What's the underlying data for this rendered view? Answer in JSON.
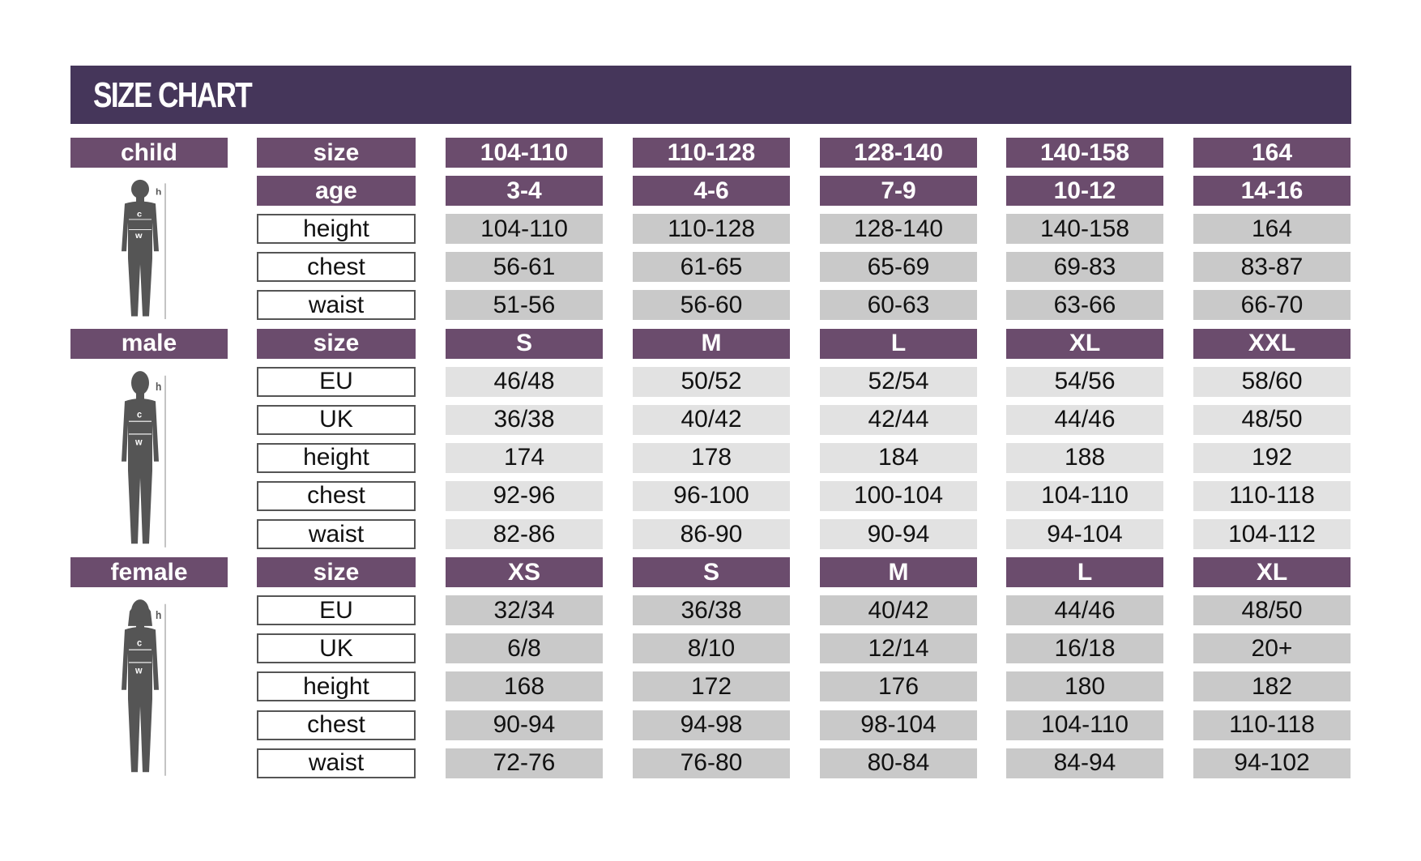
{
  "title": "SIZE CHART",
  "colors": {
    "header": "#45365a",
    "purple": "#6b4c6d",
    "gray": "#c9c9c9",
    "light_gray": "#e2e2e2"
  },
  "sections": [
    {
      "name": "child",
      "figure": "child-figure-icon",
      "figure_labels": [
        "h",
        "c",
        "w"
      ],
      "rows": [
        {
          "label": "size",
          "header": true,
          "values": [
            "104-110",
            "110-128",
            "128-140",
            "140-158",
            "164"
          ]
        },
        {
          "label": "age",
          "header": true,
          "values": [
            "3-4",
            "4-6",
            "7-9",
            "10-12",
            "14-16"
          ]
        },
        {
          "label": "height",
          "values": [
            "104-110",
            "110-128",
            "128-140",
            "140-158",
            "164"
          ]
        },
        {
          "label": "chest",
          "values": [
            "56-61",
            "61-65",
            "65-69",
            "69-83",
            "83-87"
          ]
        },
        {
          "label": "waist",
          "values": [
            "51-56",
            "56-60",
            "60-63",
            "63-66",
            "66-70"
          ]
        }
      ]
    },
    {
      "name": "male",
      "figure": "male-figure-icon",
      "figure_labels": [
        "h",
        "c",
        "w"
      ],
      "rows": [
        {
          "label": "size",
          "header": true,
          "values": [
            "S",
            "M",
            "L",
            "XL",
            "XXL"
          ]
        },
        {
          "label": "EU",
          "values": [
            "46/48",
            "50/52",
            "52/54",
            "54/56",
            "58/60"
          ]
        },
        {
          "label": "UK",
          "values": [
            "36/38",
            "40/42",
            "42/44",
            "44/46",
            "48/50"
          ]
        },
        {
          "label": "height",
          "values": [
            "174",
            "178",
            "184",
            "188",
            "192"
          ]
        },
        {
          "label": "chest",
          "values": [
            "92-96",
            "96-100",
            "100-104",
            "104-110",
            "110-118"
          ]
        },
        {
          "label": "waist",
          "values": [
            "82-86",
            "86-90",
            "90-94",
            "94-104",
            "104-112"
          ]
        }
      ]
    },
    {
      "name": "female",
      "figure": "female-figure-icon",
      "figure_labels": [
        "h",
        "c",
        "w"
      ],
      "rows": [
        {
          "label": "size",
          "header": true,
          "values": [
            "XS",
            "S",
            "M",
            "L",
            "XL"
          ]
        },
        {
          "label": "EU",
          "values": [
            "32/34",
            "36/38",
            "40/42",
            "44/46",
            "48/50"
          ]
        },
        {
          "label": "UK",
          "values": [
            "6/8",
            "8/10",
            "12/14",
            "16/18",
            "20+"
          ]
        },
        {
          "label": "height",
          "values": [
            "168",
            "172",
            "176",
            "180",
            "182"
          ]
        },
        {
          "label": "chest",
          "values": [
            "90-94",
            "94-98",
            "98-104",
            "104-110",
            "110-118"
          ]
        },
        {
          "label": "waist",
          "values": [
            "72-76",
            "76-80",
            "80-84",
            "84-94",
            "94-102"
          ]
        }
      ]
    }
  ]
}
